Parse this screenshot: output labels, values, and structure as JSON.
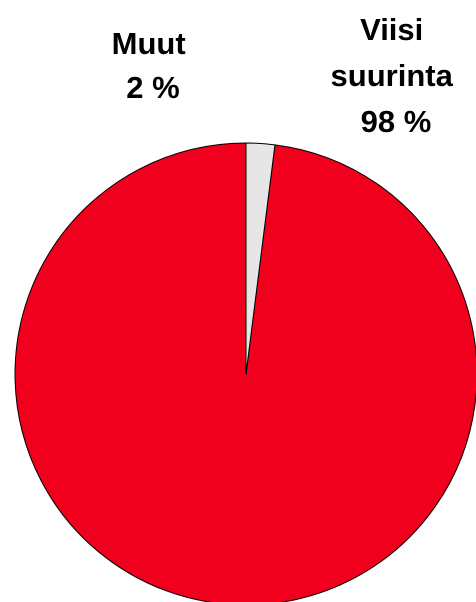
{
  "chart_data": {
    "type": "pie",
    "title": "",
    "start": "top",
    "direction": "counterclockwise",
    "legend": "none",
    "slices": [
      {
        "label_lines": [
          "Viisi",
          "suurinta",
          "98 %"
        ],
        "value": 98,
        "color": "#f0001c"
      },
      {
        "label_lines": [
          "Muut",
          "2 %"
        ],
        "value": 2,
        "color": "#e6e6e6"
      }
    ],
    "outline_color": "#000000"
  }
}
